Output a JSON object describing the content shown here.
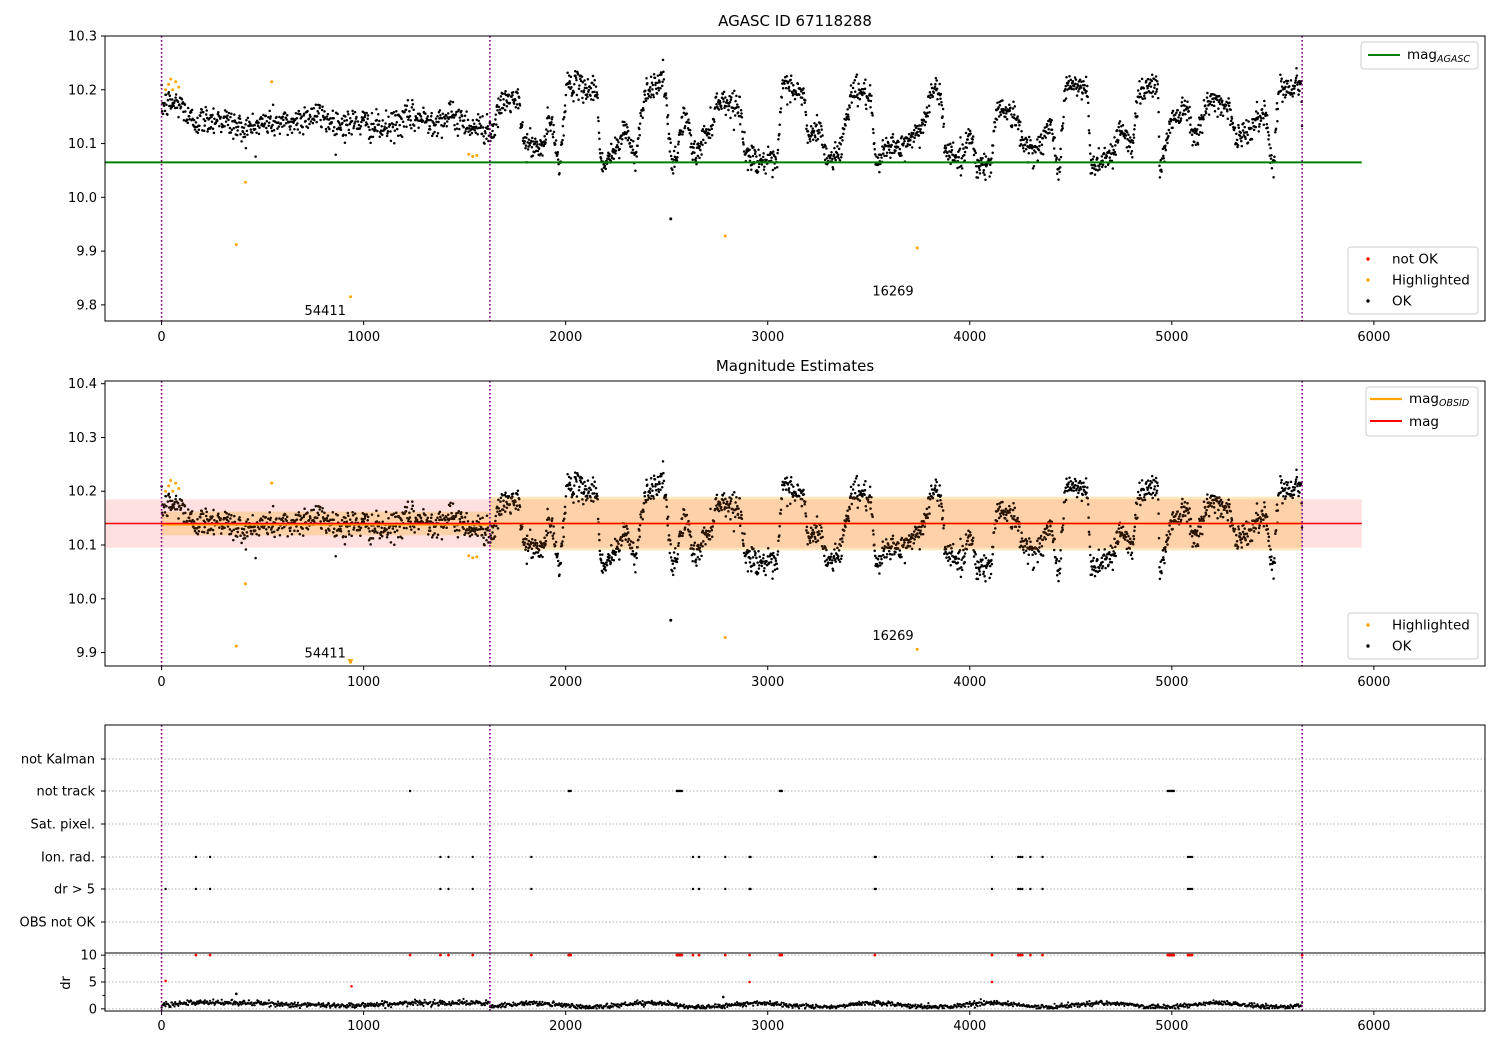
{
  "chart_data": [
    {
      "type": "scatter",
      "title": "AGASC ID 67118288",
      "xlim": [
        -280,
        6550
      ],
      "ylim": [
        9.77,
        10.3
      ],
      "xticks": [
        0,
        1000,
        2000,
        3000,
        4000,
        5000,
        6000
      ],
      "yticks": [
        9.8,
        9.9,
        10.0,
        10.1,
        10.2,
        10.3
      ],
      "obsid_boundaries": [
        0,
        1625,
        5645
      ],
      "reference_lines": [
        {
          "name": "mag",
          "subscript": "AGASC",
          "y": 10.065,
          "x_range": [
            -280,
            5940
          ],
          "color": "#008000"
        }
      ],
      "annotations": [
        {
          "text": "54411",
          "x": 810,
          "y": 9.79
        },
        {
          "text": "16269",
          "x": 3620,
          "y": 9.827
        }
      ],
      "series": [
        {
          "name": "not OK",
          "color": "#ff0000",
          "points": []
        },
        {
          "name": "Highlighted",
          "color": "#ffa500",
          "points": [
            [
              20,
              10.2
            ],
            [
              35,
              10.21
            ],
            [
              45,
              10.22
            ],
            [
              55,
              10.2
            ],
            [
              70,
              10.215
            ],
            [
              85,
              10.205
            ],
            [
              370,
              9.912
            ],
            [
              415,
              10.028
            ],
            [
              545,
              10.215
            ],
            [
              935,
              9.815
            ],
            [
              1520,
              10.08
            ],
            [
              1540,
              10.076
            ],
            [
              1560,
              10.078
            ],
            [
              2790,
              9.928
            ],
            [
              3740,
              9.906
            ]
          ]
        },
        {
          "name": "OK",
          "color": "#000000",
          "points": [
            [
              2520,
              9.96
            ]
          ]
        }
      ],
      "legends": [
        {
          "placement": "upper-right",
          "entries": [
            "mag_AGASC"
          ]
        },
        {
          "placement": "lower-right",
          "entries": [
            "not OK",
            "Highlighted",
            "OK"
          ]
        }
      ],
      "segments": [
        {
          "x": [
            0,
            1625
          ],
          "profile": "stable",
          "level": 10.14,
          "scatter": 0.02,
          "start_level": 10.17
        },
        {
          "x": [
            1625,
            5645
          ],
          "profile": "variable",
          "nodes": [
            [
              1625,
              10.12
            ],
            [
              1700,
              10.18
            ],
            [
              1760,
              10.18
            ],
            [
              1800,
              10.1
            ],
            [
              1880,
              10.09
            ],
            [
              1920,
              10.14
            ],
            [
              1970,
              10.07
            ],
            [
              2010,
              10.21
            ],
            [
              2150,
              10.2
            ],
            [
              2180,
              10.06
            ],
            [
              2260,
              10.09
            ],
            [
              2290,
              10.13
            ],
            [
              2340,
              10.08
            ],
            [
              2400,
              10.2
            ],
            [
              2480,
              10.22
            ],
            [
              2530,
              10.06
            ],
            [
              2590,
              10.15
            ],
            [
              2640,
              10.08
            ],
            [
              2700,
              10.12
            ],
            [
              2760,
              10.18
            ],
            [
              2860,
              10.17
            ],
            [
              2890,
              10.08
            ],
            [
              2960,
              10.07
            ],
            [
              3040,
              10.06
            ],
            [
              3080,
              10.21
            ],
            [
              3180,
              10.19
            ],
            [
              3200,
              10.11
            ],
            [
              3260,
              10.13
            ],
            [
              3290,
              10.07
            ],
            [
              3340,
              10.08
            ],
            [
              3430,
              10.2
            ],
            [
              3500,
              10.19
            ],
            [
              3540,
              10.06
            ],
            [
              3600,
              10.1
            ],
            [
              3650,
              10.09
            ],
            [
              3740,
              10.12
            ],
            [
              3830,
              10.2
            ],
            [
              3860,
              10.18
            ],
            [
              3880,
              10.09
            ],
            [
              3960,
              10.07
            ],
            [
              4000,
              10.12
            ],
            [
              4040,
              10.06
            ],
            [
              4100,
              10.06
            ],
            [
              4140,
              10.17
            ],
            [
              4230,
              10.15
            ],
            [
              4260,
              10.1
            ],
            [
              4330,
              10.09
            ],
            [
              4400,
              10.13
            ],
            [
              4440,
              10.06
            ],
            [
              4480,
              10.21
            ],
            [
              4580,
              10.2
            ],
            [
              4600,
              10.06
            ],
            [
              4700,
              10.08
            ],
            [
              4750,
              10.13
            ],
            [
              4800,
              10.09
            ],
            [
              4840,
              10.2
            ],
            [
              4930,
              10.21
            ],
            [
              4940,
              10.06
            ],
            [
              5010,
              10.15
            ],
            [
              5070,
              10.17
            ],
            [
              5110,
              10.12
            ],
            [
              5200,
              10.18
            ],
            [
              5280,
              10.17
            ],
            [
              5320,
              10.11
            ],
            [
              5400,
              10.13
            ],
            [
              5460,
              10.16
            ],
            [
              5500,
              10.06
            ],
            [
              5530,
              10.2
            ],
            [
              5640,
              10.21
            ],
            [
              5645,
              10.12
            ]
          ]
        }
      ]
    },
    {
      "type": "scatter",
      "title": "Magnitude Estimates",
      "xlim": [
        -280,
        6550
      ],
      "ylim": [
        9.875,
        10.405
      ],
      "xticks": [
        0,
        1000,
        2000,
        3000,
        4000,
        5000,
        6000
      ],
      "yticks": [
        9.9,
        10.0,
        10.1,
        10.2,
        10.3,
        10.4
      ],
      "obsid_boundaries": [
        0,
        1625,
        5645
      ],
      "reference_lines": [
        {
          "name": "mag",
          "y": 10.14,
          "x_range": [
            -280,
            5940
          ],
          "color": "#ff0000"
        }
      ],
      "bands": [
        {
          "x_range": [
            -280,
            5940
          ],
          "y_range": [
            10.095,
            10.185
          ],
          "color": "#ff0000",
          "opacity": 0.12
        },
        {
          "x_range": [
            0,
            1625
          ],
          "y_range": [
            10.118,
            10.162
          ],
          "color": "#ffa500",
          "opacity": 0.25
        },
        {
          "x_range": [
            1625,
            5645
          ],
          "y_range": [
            10.09,
            10.19
          ],
          "color": "#ffa500",
          "opacity": 0.25
        }
      ],
      "obsid_means": [
        {
          "name": "mag",
          "subscript": "OBSID",
          "x_range": [
            0,
            1625
          ],
          "y": 10.138,
          "color": "#ffa500"
        },
        {
          "name": "mag",
          "subscript": "OBSID",
          "x_range": [
            1625,
            5645
          ],
          "y": 10.14,
          "color": "#ffa500"
        }
      ],
      "annotations": [
        {
          "text": "54411",
          "x": 810,
          "y": 9.9
        },
        {
          "text": "16269",
          "x": 3620,
          "y": 9.933
        }
      ],
      "series": [
        {
          "name": "Highlighted",
          "color": "#ffa500",
          "points": [
            [
              20,
              10.2
            ],
            [
              35,
              10.21
            ],
            [
              45,
              10.22
            ],
            [
              55,
              10.2
            ],
            [
              70,
              10.215
            ],
            [
              85,
              10.205
            ],
            [
              370,
              9.912
            ],
            [
              415,
              10.028
            ],
            [
              545,
              10.215
            ],
            [
              935,
              9.882
            ],
            [
              1520,
              10.08
            ],
            [
              1540,
              10.076
            ],
            [
              1560,
              10.078
            ],
            [
              2790,
              9.928
            ],
            [
              3740,
              9.906
            ]
          ]
        },
        {
          "name": "OK",
          "color": "#000000",
          "points": [
            [
              2520,
              9.96
            ]
          ]
        }
      ],
      "legends": [
        {
          "placement": "upper-right",
          "entries": [
            "mag_OBSID",
            "mag"
          ]
        },
        {
          "placement": "lower-right",
          "entries": [
            "Highlighted",
            "OK"
          ]
        }
      ]
    },
    {
      "type": "scatter",
      "title": "",
      "xlim": [
        -280,
        6550
      ],
      "xticks": [
        0,
        1000,
        2000,
        3000,
        4000,
        5000,
        6000
      ],
      "obsid_boundaries": [
        0,
        1625,
        5645
      ],
      "flag_rows": [
        "not Kalman",
        "not track",
        "Sat. pixel.",
        "Ion. rad.",
        "dr > 5",
        "OBS not OK"
      ],
      "flags": {
        "not Kalman": [],
        "not track": [
          1230,
          2015,
          2020,
          2025,
          2550,
          2555,
          2560,
          2565,
          2570,
          2575,
          3060,
          3065,
          3070,
          4980,
          4985,
          4990,
          4995,
          5000,
          5005,
          5010
        ],
        "Sat. pixel.": [],
        "Ion. rad.": [
          170,
          240,
          1380,
          1420,
          1540,
          1830,
          2630,
          2660,
          2790,
          2910,
          2915,
          3530,
          3535,
          4110,
          4240,
          4250,
          4260,
          4300,
          4360,
          5080,
          5090,
          5100
        ],
        "dr > 5": [
          20,
          170,
          240,
          1380,
          1420,
          1540,
          1830,
          2630,
          2660,
          2790,
          2910,
          2915,
          3530,
          3535,
          4110,
          4240,
          4250,
          4260,
          4300,
          4360,
          5080,
          5090,
          5100
        ],
        "OBS not OK": []
      },
      "dr": {
        "ylabel": "dr",
        "yticks": [
          0,
          5,
          10
        ],
        "ylim": [
          -0.4,
          10.4
        ],
        "clipped_at_10": [
          170,
          240,
          1230,
          1380,
          1420,
          1540,
          1830,
          2015,
          2020,
          2025,
          2550,
          2555,
          2560,
          2565,
          2570,
          2575,
          2630,
          2660,
          2790,
          2910,
          3060,
          3065,
          3070,
          3530,
          4110,
          4240,
          4250,
          4260,
          4300,
          4360,
          4980,
          4985,
          4990,
          4995,
          5000,
          5005,
          5010,
          5080,
          5090,
          5100,
          5645
        ],
        "outliers": [
          [
            20,
            5.2
          ],
          [
            940,
            4.2
          ],
          [
            2910,
            5.0
          ],
          [
            4110,
            5.0
          ],
          [
            370,
            2.8
          ],
          [
            2780,
            2.2
          ]
        ],
        "baseline": 0.9
      }
    }
  ]
}
